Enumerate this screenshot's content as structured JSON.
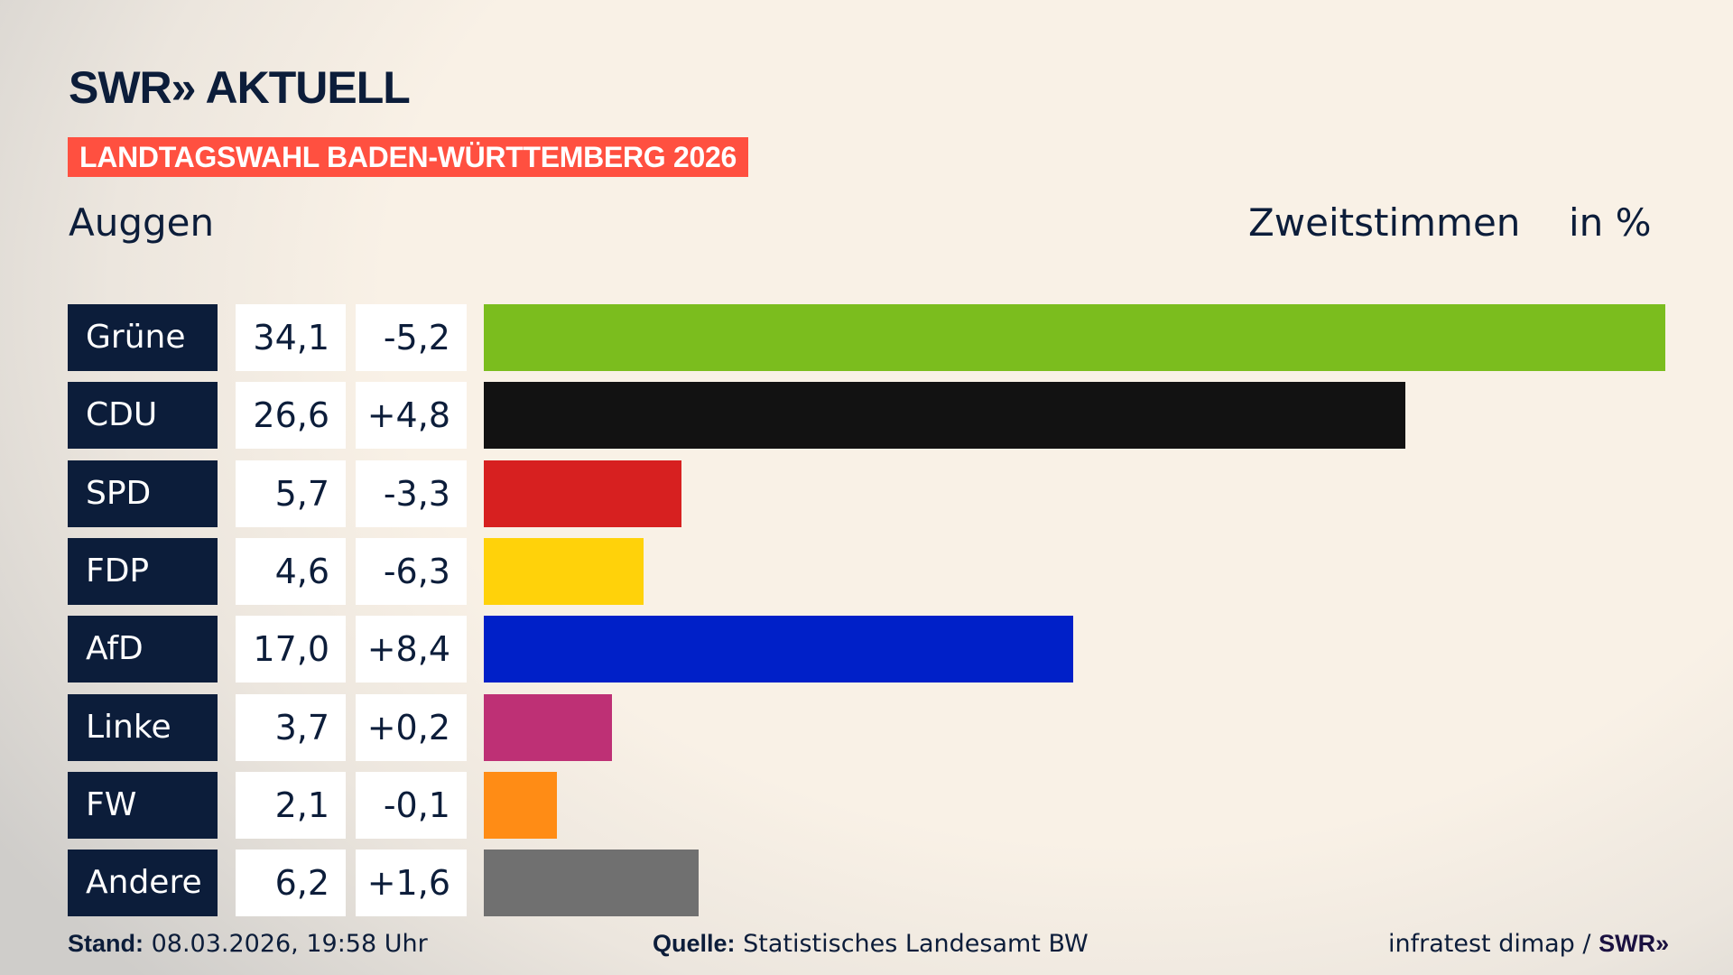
{
  "header": {
    "logo": "SWR» AKTUELL",
    "banner": "LANDTAGSWAHL BADEN-WÜRTTEMBERG 2026",
    "place": "Auggen",
    "metric": "Zweitstimmen",
    "unit": "in %"
  },
  "chart_data": {
    "type": "bar",
    "orientation": "horizontal",
    "categories": [
      "Grüne",
      "CDU",
      "SPD",
      "FDP",
      "AfD",
      "Linke",
      "FW",
      "Andere"
    ],
    "values": [
      34.1,
      26.6,
      5.7,
      4.6,
      17.0,
      3.7,
      2.1,
      6.2
    ],
    "value_labels": [
      "34,1",
      "26,6",
      "5,7",
      "4,6",
      "17,0",
      "3,7",
      "2,1",
      "6,2"
    ],
    "changes": [
      -5.2,
      4.8,
      -3.3,
      -6.3,
      8.4,
      0.2,
      -0.1,
      1.6
    ],
    "change_labels": [
      "-5,2",
      "+4,8",
      "-3,3",
      "-6,3",
      "+8,4",
      "+0,2",
      "-0,1",
      "+1,6"
    ],
    "colors": [
      "#7bbd1e",
      "#121212",
      "#d72020",
      "#ffd20a",
      "#0020c8",
      "#be3075",
      "#ff8c15",
      "#707070"
    ],
    "grid": false
  },
  "footer": {
    "stand_label": "Stand:",
    "stand_value": "08.03.2026, 19:58 Uhr",
    "source_label": "Quelle:",
    "source_value": "Statistisches Landesamt BW",
    "credit": "infratest dimap /",
    "credit_logo": "SWR»"
  }
}
